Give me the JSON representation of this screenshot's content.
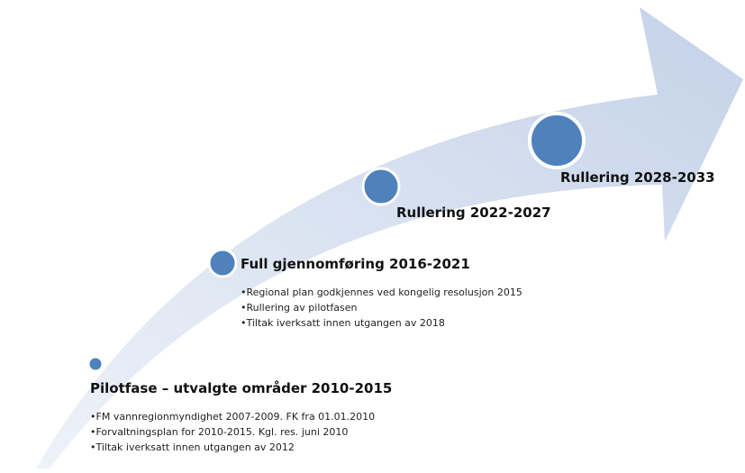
{
  "stages": [
    {
      "title": "Pilotfase – utvalgte områder 2010-2015",
      "bullets": [
        "FM vannregionmyndighet 2007-2009. FK fra 01.01.2010",
        "Forvaltningsplan for 2010-2015. Kgl. res. juni 2010",
        "Tiltak iverksatt innen utgangen av 2012"
      ]
    },
    {
      "title": "Full gjennomføring 2016-2021",
      "bullets": [
        "Regional plan godkjennes ved kongelig resolusjon 2015",
        "Rullering av pilotfasen",
        "Tiltak iverksatt innen utgangen av 2018"
      ]
    },
    {
      "title": "Rullering 2022-2027",
      "bullets": []
    },
    {
      "title": "Rullering 2028-2033",
      "bullets": []
    }
  ]
}
